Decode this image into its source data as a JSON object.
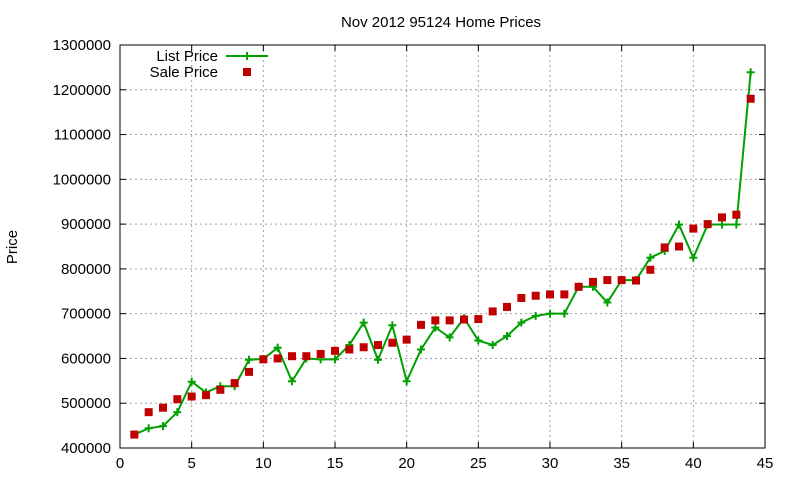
{
  "chart_data": {
    "type": "line",
    "title": "Nov 2012 95124 Home Prices",
    "xlabel": "",
    "ylabel": "Price",
    "xlim": [
      0,
      45
    ],
    "ylim": [
      400000,
      1300000
    ],
    "x_ticks": [
      0,
      5,
      10,
      15,
      20,
      25,
      30,
      35,
      40,
      45
    ],
    "y_ticks": [
      400000,
      500000,
      600000,
      700000,
      800000,
      900000,
      1000000,
      1100000,
      1200000,
      1300000
    ],
    "grid": true,
    "legend_position": "top-left",
    "series": [
      {
        "name": "List Price",
        "style": "line-with-plus-markers",
        "color": "#00a000",
        "x": [
          1,
          2,
          3,
          4,
          5,
          6,
          7,
          8,
          9,
          10,
          11,
          12,
          13,
          14,
          15,
          16,
          17,
          18,
          19,
          20,
          21,
          22,
          23,
          24,
          25,
          26,
          27,
          28,
          29,
          30,
          31,
          32,
          33,
          34,
          35,
          36,
          37,
          38,
          39,
          40,
          41,
          42,
          43,
          44
        ],
        "values": [
          430000,
          444000,
          449000,
          480000,
          548000,
          524000,
          538000,
          538000,
          597000,
          599000,
          624000,
          549000,
          600000,
          598000,
          598000,
          630000,
          680000,
          597000,
          674000,
          549000,
          620000,
          669000,
          647000,
          690000,
          640000,
          630000,
          650000,
          680000,
          695000,
          700000,
          700000,
          760000,
          760000,
          725000,
          775000,
          775000,
          825000,
          840000,
          899000,
          825000,
          899000,
          899000,
          899000,
          1239000
        ]
      },
      {
        "name": "Sale Price",
        "style": "square-markers",
        "color": "#c00000",
        "x": [
          1,
          2,
          3,
          4,
          5,
          6,
          7,
          8,
          9,
          10,
          11,
          12,
          13,
          14,
          15,
          16,
          17,
          18,
          19,
          20,
          21,
          22,
          23,
          24,
          25,
          26,
          27,
          28,
          29,
          30,
          31,
          32,
          33,
          34,
          35,
          36,
          37,
          38,
          39,
          40,
          41,
          42,
          43,
          44
        ],
        "values": [
          430000,
          480000,
          490000,
          509000,
          515000,
          518000,
          530000,
          545000,
          570000,
          598000,
          600000,
          605000,
          605000,
          610000,
          617000,
          620000,
          625000,
          630000,
          635000,
          642000,
          675000,
          685000,
          685000,
          687000,
          688000,
          705000,
          715000,
          735000,
          740000,
          743000,
          743000,
          760000,
          771000,
          775000,
          775000,
          774000,
          798000,
          848000,
          850000,
          890000,
          900000,
          915000,
          921000,
          1180000
        ]
      }
    ]
  }
}
